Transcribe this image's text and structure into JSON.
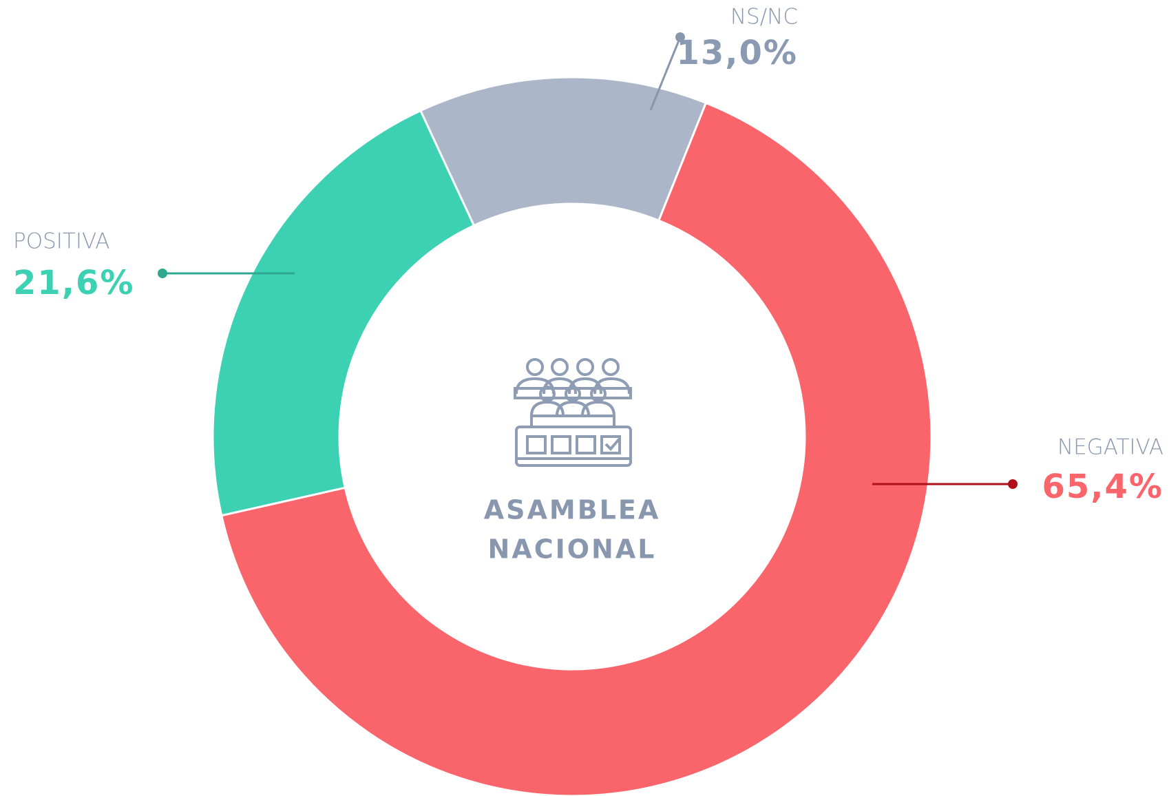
{
  "chart_data": {
    "type": "donut",
    "center_label": [
      "ASAMBLEA",
      "NACIONAL"
    ],
    "categories": [
      "POSITIVA",
      "NS/NC",
      "NEGATIVA"
    ],
    "values": [
      21.6,
      13.0,
      65.4
    ],
    "value_labels": [
      "21,6%",
      "13,0%",
      "65,4%"
    ],
    "colors": [
      "#3dd1b4",
      "#abb7c8",
      "#fa646b"
    ]
  }
}
